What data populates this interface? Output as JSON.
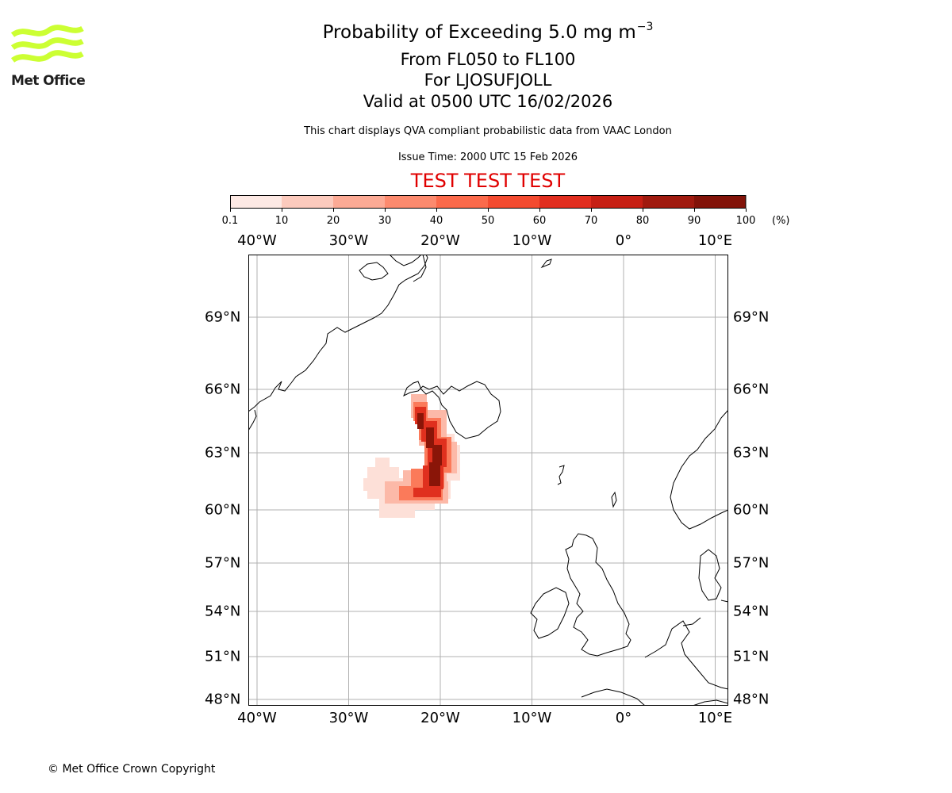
{
  "logo": {
    "text": "Met Office",
    "color": "#ccff33"
  },
  "title": {
    "line1": "Probability of Exceeding 5.0 mg m",
    "line1_exp": "−3",
    "line2": "From FL050 to FL100",
    "line3": "For LJOSUFJOLL",
    "line4": "Valid at 0500 UTC 16/02/2026"
  },
  "disclaimer": "This chart displays QVA compliant probabilistic data from VAAC London",
  "issue_time": "Issue Time: 2000 UTC 15 Feb 2026",
  "test_banner": "TEST TEST TEST",
  "colorbar": {
    "ticks": [
      "0.1",
      "10",
      "20",
      "30",
      "40",
      "50",
      "60",
      "70",
      "80",
      "90",
      "100"
    ],
    "unit": "(%)",
    "colors": [
      "#fde9e4",
      "#fccabd",
      "#fcaa95",
      "#fc8a6e",
      "#fb6a4b",
      "#f34b30",
      "#e12e1f",
      "#c61f14",
      "#a01a0f",
      "#821309",
      "#67100b"
    ]
  },
  "map": {
    "lon_labels": [
      "40°W",
      "30°W",
      "20°W",
      "10°W",
      "0°",
      "10°E"
    ],
    "lat_labels": [
      "69°N",
      "66°N",
      "63°N",
      "60°N",
      "57°N",
      "54°N",
      "51°N",
      "48°N"
    ],
    "lon_values": [
      -40,
      -30,
      -20,
      -10,
      0,
      10
    ],
    "lat_values": [
      69,
      66,
      63,
      60,
      57,
      54,
      51,
      48
    ]
  },
  "copyright": "© Met Office Crown Copyright"
}
